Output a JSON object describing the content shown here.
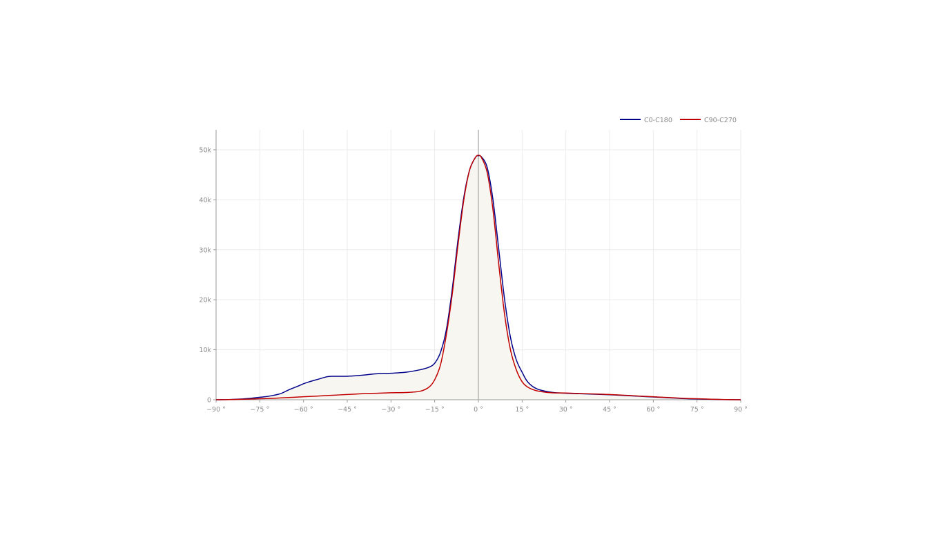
{
  "chart_data": {
    "type": "line",
    "title": "",
    "xlabel": "",
    "ylabel": "",
    "xlim": [
      -90,
      90
    ],
    "ylim": [
      0,
      54000
    ],
    "grid": true,
    "legend_placement": "top-right",
    "x_ticks": [
      -90,
      -75,
      -60,
      -45,
      -30,
      -15,
      0,
      15,
      30,
      45,
      60,
      75,
      90
    ],
    "x_tick_labels": [
      "−90 °",
      "−75 °",
      "−60 °",
      "−45 °",
      "−30 °",
      "−15 °",
      "0 °",
      "15 °",
      "30 °",
      "45 °",
      "60 °",
      "75 °",
      "90 °"
    ],
    "y_ticks": [
      0,
      10000,
      20000,
      30000,
      40000,
      50000
    ],
    "y_tick_labels": [
      "0",
      "10k",
      "20k",
      "30k",
      "40k",
      "50k"
    ],
    "fill_color": "#f8f6f0",
    "series": [
      {
        "name": "C0-C180",
        "color": "#00008b",
        "x": [
          -90,
          -85,
          -80,
          -75,
          -72,
          -68,
          -65,
          -62,
          -60,
          -58,
          -55,
          -52,
          -50,
          -45,
          -40,
          -35,
          -30,
          -25,
          -20,
          -17,
          -15,
          -13,
          -11,
          -9,
          -7,
          -5,
          -3,
          -1,
          0,
          1,
          3,
          5,
          7,
          9,
          11,
          13,
          15,
          17,
          20,
          25,
          30,
          35,
          40,
          45,
          50,
          55,
          60,
          65,
          70,
          75,
          80,
          85,
          90
        ],
        "y": [
          0,
          50,
          200,
          500,
          700,
          1200,
          2000,
          2700,
          3200,
          3600,
          4100,
          4600,
          4700,
          4700,
          4900,
          5200,
          5300,
          5500,
          6000,
          6500,
          7300,
          9500,
          14000,
          22000,
          32000,
          40500,
          46000,
          48500,
          48800,
          48600,
          46500,
          40000,
          30000,
          20000,
          12500,
          8000,
          5500,
          3500,
          2200,
          1500,
          1300,
          1200,
          1100,
          1000,
          850,
          700,
          550,
          400,
          250,
          150,
          80,
          20,
          0
        ]
      },
      {
        "name": "C90-C270",
        "color": "#c00000",
        "x": [
          -90,
          -85,
          -80,
          -75,
          -70,
          -65,
          -60,
          -55,
          -50,
          -45,
          -40,
          -35,
          -30,
          -25,
          -20,
          -17,
          -15,
          -13,
          -11,
          -9,
          -7,
          -5,
          -3,
          -1,
          0,
          1,
          3,
          5,
          7,
          9,
          11,
          13,
          15,
          17,
          20,
          25,
          30,
          35,
          40,
          45,
          50,
          55,
          60,
          65,
          70,
          75,
          80,
          85,
          90
        ],
        "y": [
          0,
          30,
          100,
          200,
          300,
          450,
          600,
          750,
          900,
          1050,
          1200,
          1300,
          1400,
          1450,
          1700,
          2500,
          4000,
          7000,
          13000,
          21000,
          31000,
          40000,
          46000,
          48500,
          48900,
          48500,
          45500,
          38000,
          27000,
          17000,
          10000,
          6000,
          3600,
          2500,
          1800,
          1400,
          1350,
          1250,
          1150,
          1050,
          900,
          750,
          600,
          450,
          300,
          200,
          100,
          30,
          0
        ]
      }
    ]
  }
}
